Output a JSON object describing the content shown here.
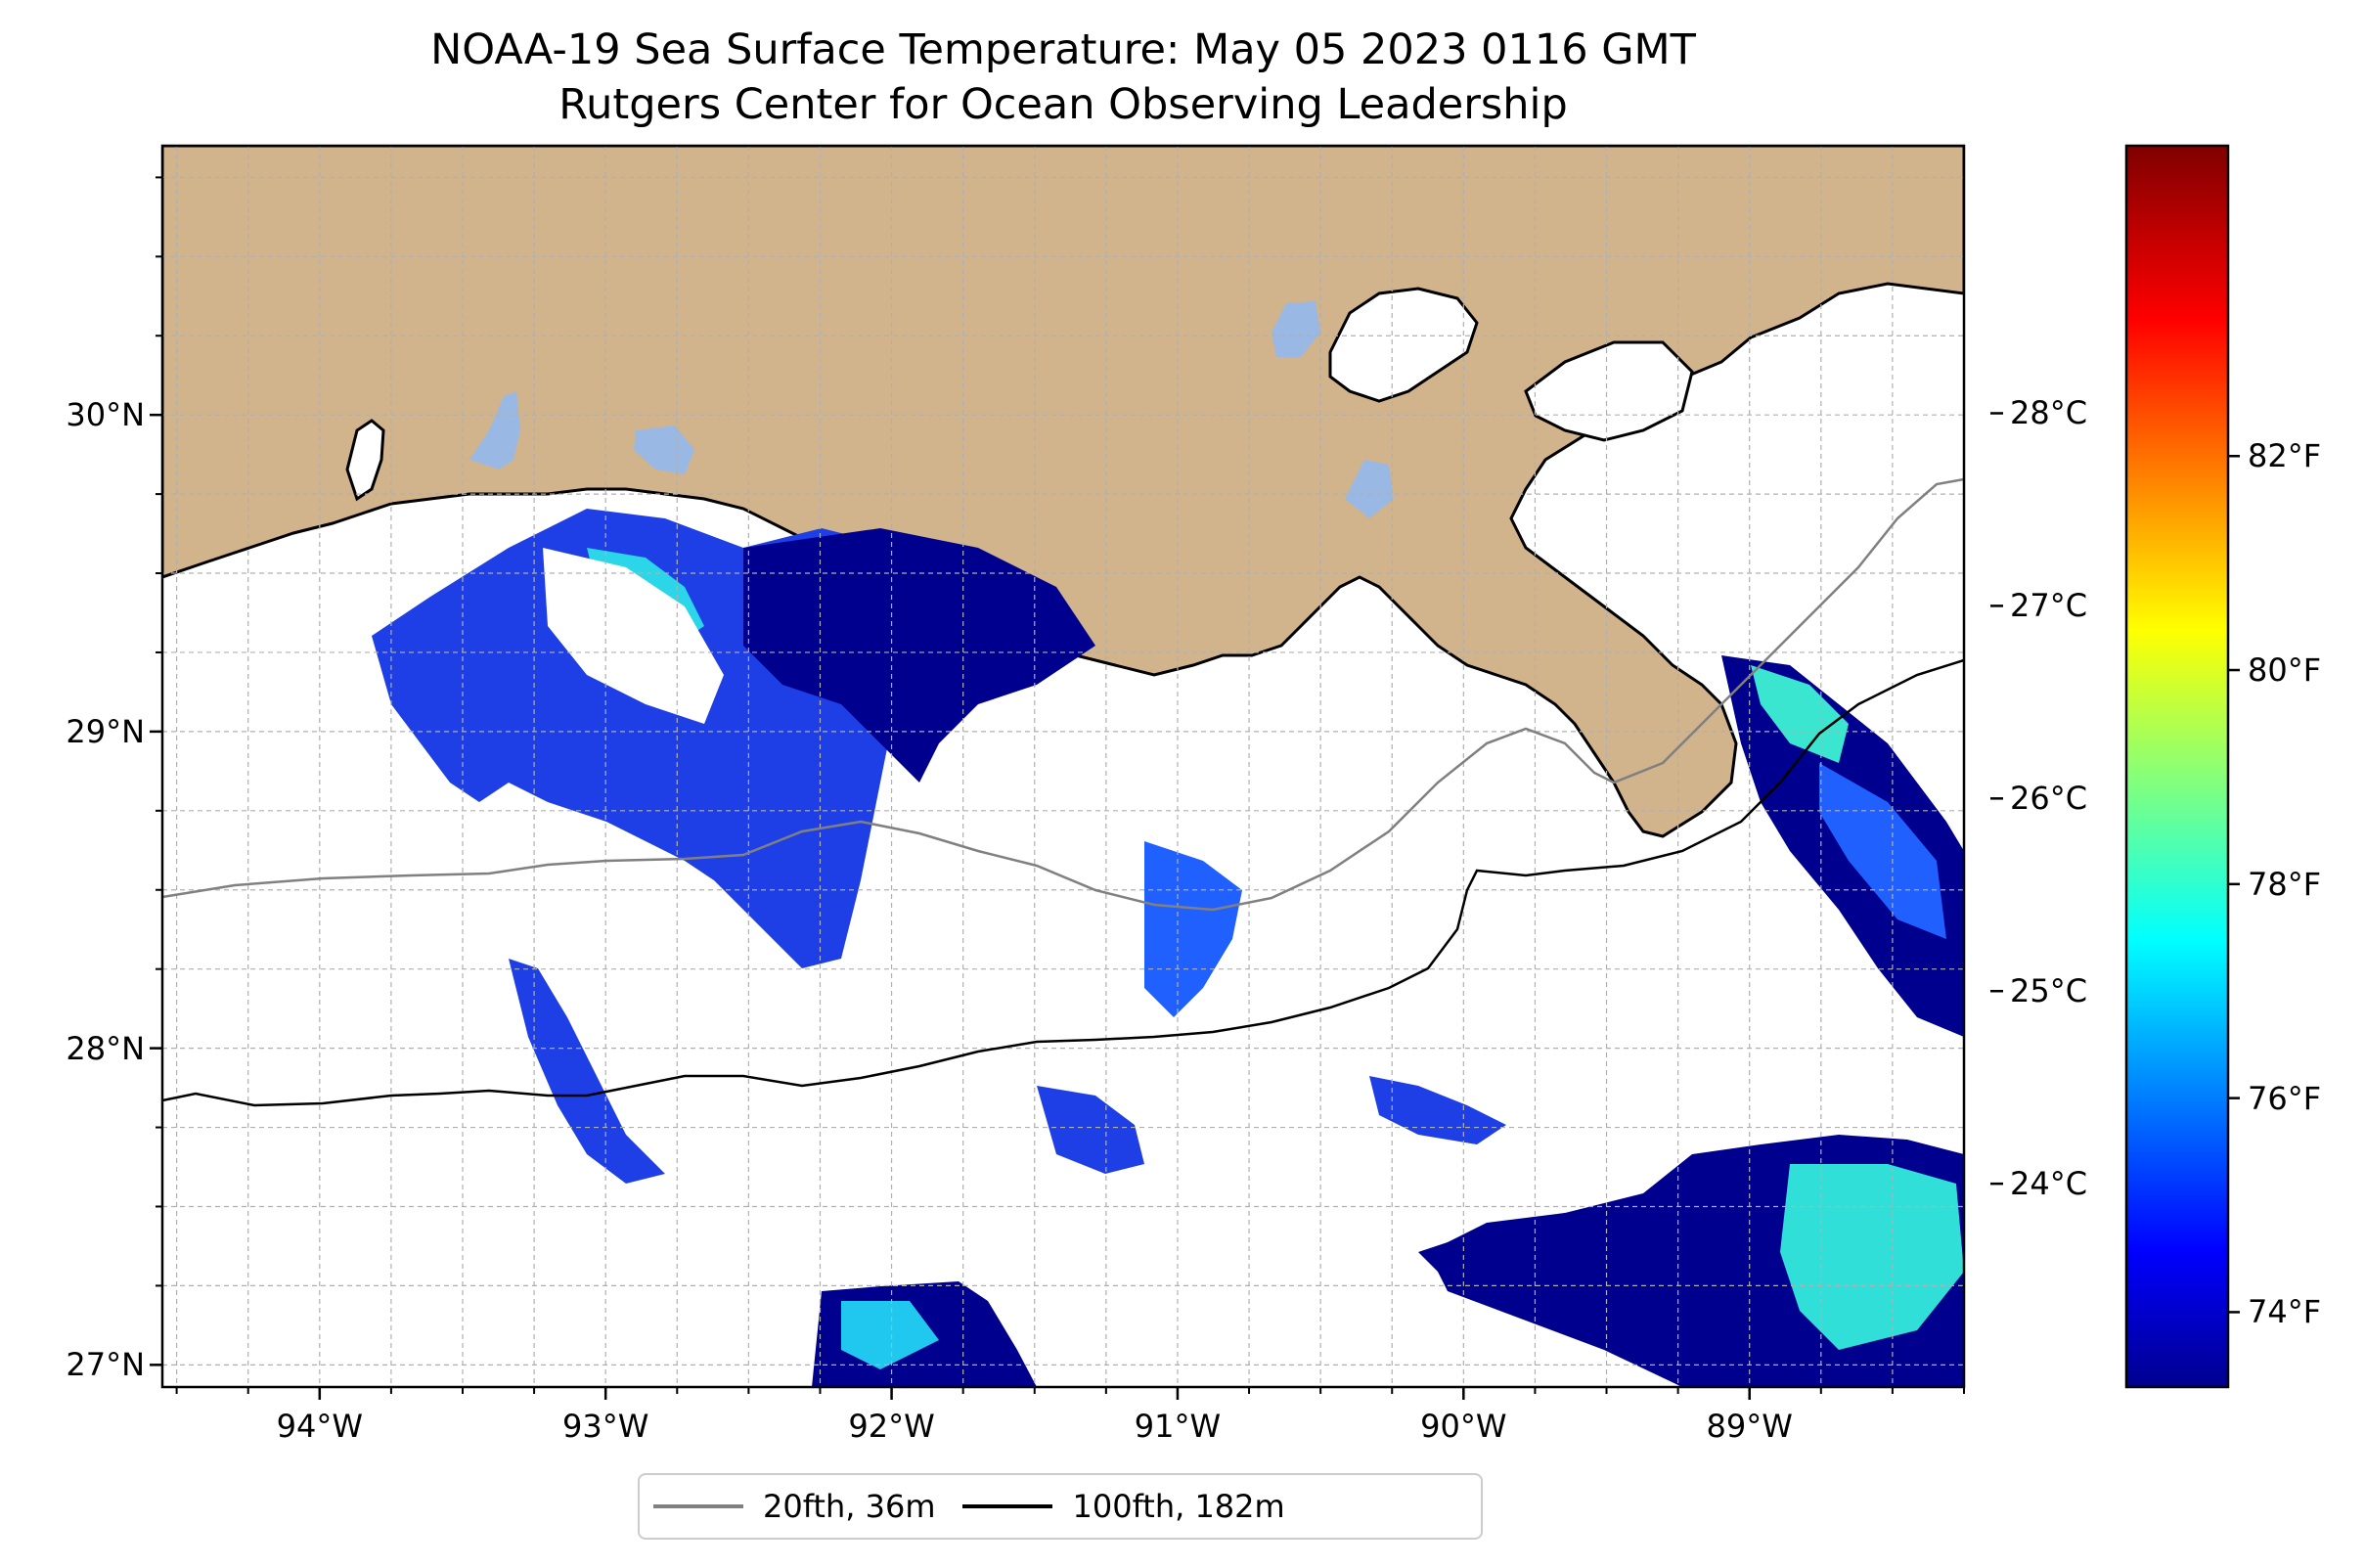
{
  "title": {
    "line1": "NOAA-19 Sea Surface Temperature: May 05 2023 0116 GMT",
    "line2": "Rutgers Center for Ocean Observing Leadership"
  },
  "map_axes": {
    "lon_range": [
      -94.55,
      -88.25
    ],
    "lat_range": [
      26.93,
      30.85
    ],
    "lon_ticks": [
      {
        "value": -94,
        "label": "94°W"
      },
      {
        "value": -93,
        "label": "93°W"
      },
      {
        "value": -92,
        "label": "92°W"
      },
      {
        "value": -91,
        "label": "91°W"
      },
      {
        "value": -90,
        "label": "90°W"
      },
      {
        "value": -89,
        "label": "89°W"
      }
    ],
    "lat_ticks": [
      {
        "value": 30,
        "label": "30°N"
      },
      {
        "value": 29,
        "label": "29°N"
      },
      {
        "value": 28,
        "label": "28°N"
      },
      {
        "value": 27,
        "label": "27°N"
      }
    ],
    "grid": true
  },
  "colors": {
    "land": "#d2b48c",
    "lake": "#9ab8e4",
    "isobath_20": "#808080",
    "isobath_100": "#000000"
  },
  "colorbar": {
    "colormap": "jet",
    "celsius_ticks": [
      {
        "value": 28,
        "label": "28°C"
      },
      {
        "value": 27,
        "label": "27°C"
      },
      {
        "value": 26,
        "label": "26°C"
      },
      {
        "value": 25,
        "label": "25°C"
      },
      {
        "value": 24,
        "label": "24°C"
      }
    ],
    "fahrenheit_ticks": [
      {
        "value": 82,
        "label": "82°F"
      },
      {
        "value": 80,
        "label": "80°F"
      },
      {
        "value": 78,
        "label": "78°F"
      },
      {
        "value": 76,
        "label": "76°F"
      },
      {
        "value": 74,
        "label": "74°F"
      }
    ]
  },
  "legend": {
    "items": [
      {
        "label": "20fth, 36m",
        "color": "#808080"
      },
      {
        "label": "100fth, 182m",
        "color": "#000000"
      }
    ]
  }
}
